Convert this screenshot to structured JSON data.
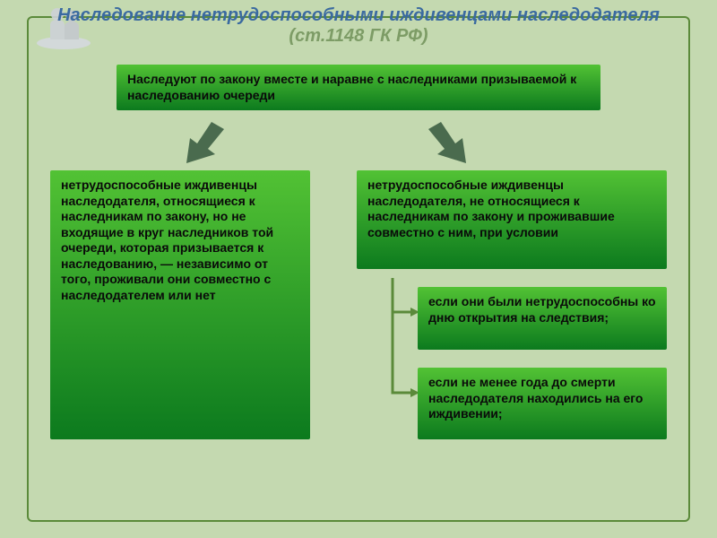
{
  "colors": {
    "page_bg": "#c4d9b0",
    "frame_border": "#5b8a3a",
    "title_main": "#3a6aa0",
    "title_ref": "#7d9c66",
    "box_text": "#0a0a0a",
    "grad_top": "#52c234",
    "grad_bottom": "#0c7a1e",
    "arrow_fill": "#4a6b4e",
    "connector": "#5b8a3a",
    "icon_gray": "#bfc4c9"
  },
  "sizes": {
    "title_fontsize": 20,
    "box_fontsize": 14
  },
  "title": {
    "main": "Наследование нетрудоспособными иждивенцами наследодателя ",
    "ref": "(ст.1148 ГК РФ)"
  },
  "boxes": {
    "top": "Наследуют по закону вместе и наравне с наследниками призываемой к наследованию очереди",
    "left": "нетрудоспособные иждивенцы наследодателя, относящиеся к наследникам по закону, но не входящие в круг наследников той очереди, которая призывается к наследованию, — независимо от того, проживали они совместно с наследодателем или нет",
    "right_top": "нетрудоспособные иждивенцы наследодателя, не относящиеся к наследникам по закону и проживавшие совместно с ним, при условии",
    "cond1": "если они были нетрудоспособны ко дню открытия на следствия;",
    "cond2": "если не менее года до смерти наследодателя находились на его иждивении;"
  }
}
